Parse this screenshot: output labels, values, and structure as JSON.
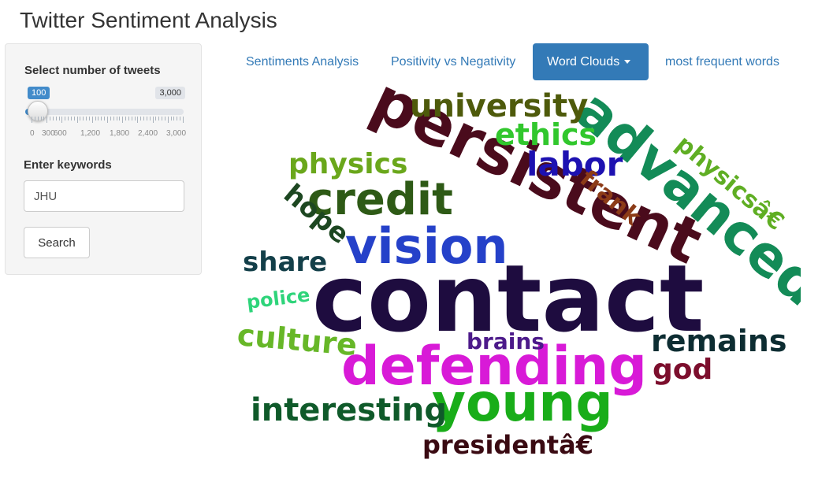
{
  "app": {
    "title": "Twitter Sentiment Analysis"
  },
  "sidebar": {
    "tweets_label": "Select number of tweets",
    "slider": {
      "value": 100,
      "value_label": "100",
      "min": 0,
      "max": 3000,
      "max_label": "3,000",
      "tick_labels": [
        "0",
        "300",
        "600",
        "1,200",
        "1,800",
        "2,400",
        "3,000"
      ]
    },
    "keywords_label": "Enter keywords",
    "keywords_value": "JHU",
    "search_label": "Search"
  },
  "tabs": [
    {
      "label": "Sentiments Analysis",
      "active": false
    },
    {
      "label": "Positivity vs Negativity",
      "active": false
    },
    {
      "label": "Word Clouds",
      "active": true,
      "dropdown": true
    },
    {
      "label": "most frequent words",
      "active": false
    }
  ],
  "wordcloud": {
    "words": [
      {
        "text": "contact",
        "color": "#1e0c3f"
      },
      {
        "text": "persistent",
        "color": "#4a0b1c"
      },
      {
        "text": "advanced",
        "color": "#138b57"
      },
      {
        "text": "defending",
        "color": "#d81ad7"
      },
      {
        "text": "young",
        "color": "#19ad19"
      },
      {
        "text": "vision",
        "color": "#2541c9"
      },
      {
        "text": "credit",
        "color": "#2e5a16"
      },
      {
        "text": "university",
        "color": "#4e5a0b"
      },
      {
        "text": "ethics",
        "color": "#31c72d"
      },
      {
        "text": "labor",
        "color": "#1d11b1"
      },
      {
        "text": "physics",
        "color": "#6aa71b"
      },
      {
        "text": "physicsâ€",
        "color": "#5fae23"
      },
      {
        "text": "frank",
        "color": "#8c3b17"
      },
      {
        "text": "hope",
        "color": "#1d4721"
      },
      {
        "text": "share",
        "color": "#133f49"
      },
      {
        "text": "police",
        "color": "#2ed47a"
      },
      {
        "text": "culture",
        "color": "#67b728"
      },
      {
        "text": "brains",
        "color": "#4c1a8a"
      },
      {
        "text": "remains",
        "color": "#0d2d32"
      },
      {
        "text": "god",
        "color": "#7c0e2d"
      },
      {
        "text": "interesting",
        "color": "#0f5a2a"
      },
      {
        "text": "presidentâ€",
        "color": "#3a0a12"
      }
    ]
  }
}
